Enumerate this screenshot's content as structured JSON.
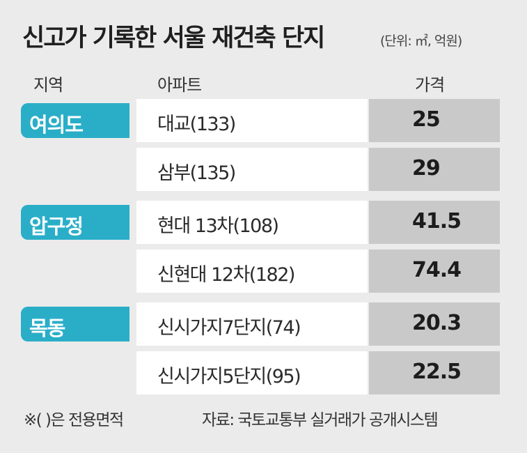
{
  "chart_data": {
    "type": "table",
    "title": "신고가 기록한 서울 재건축 단지",
    "unit": "(단위: ㎡, 억원)",
    "columns": [
      "지역",
      "아파트",
      "가격"
    ],
    "groups": [
      {
        "region": "여의도",
        "rows": [
          {
            "apartment": "대교(133)",
            "price": "25"
          },
          {
            "apartment": "삼부(135)",
            "price": "29"
          }
        ]
      },
      {
        "region": "압구정",
        "rows": [
          {
            "apartment": "현대 13차(108)",
            "price": "41.5"
          },
          {
            "apartment": "신현대 12차(182)",
            "price": "74.4"
          }
        ]
      },
      {
        "region": "목동",
        "rows": [
          {
            "apartment": "신시가지7단지(74)",
            "price": "20.3"
          },
          {
            "apartment": "신시가지5단지(95)",
            "price": "22.5"
          }
        ]
      }
    ],
    "note": "※( )은 전용면적",
    "source": "자료: 국토교통부 실거래가 공개시스템"
  }
}
